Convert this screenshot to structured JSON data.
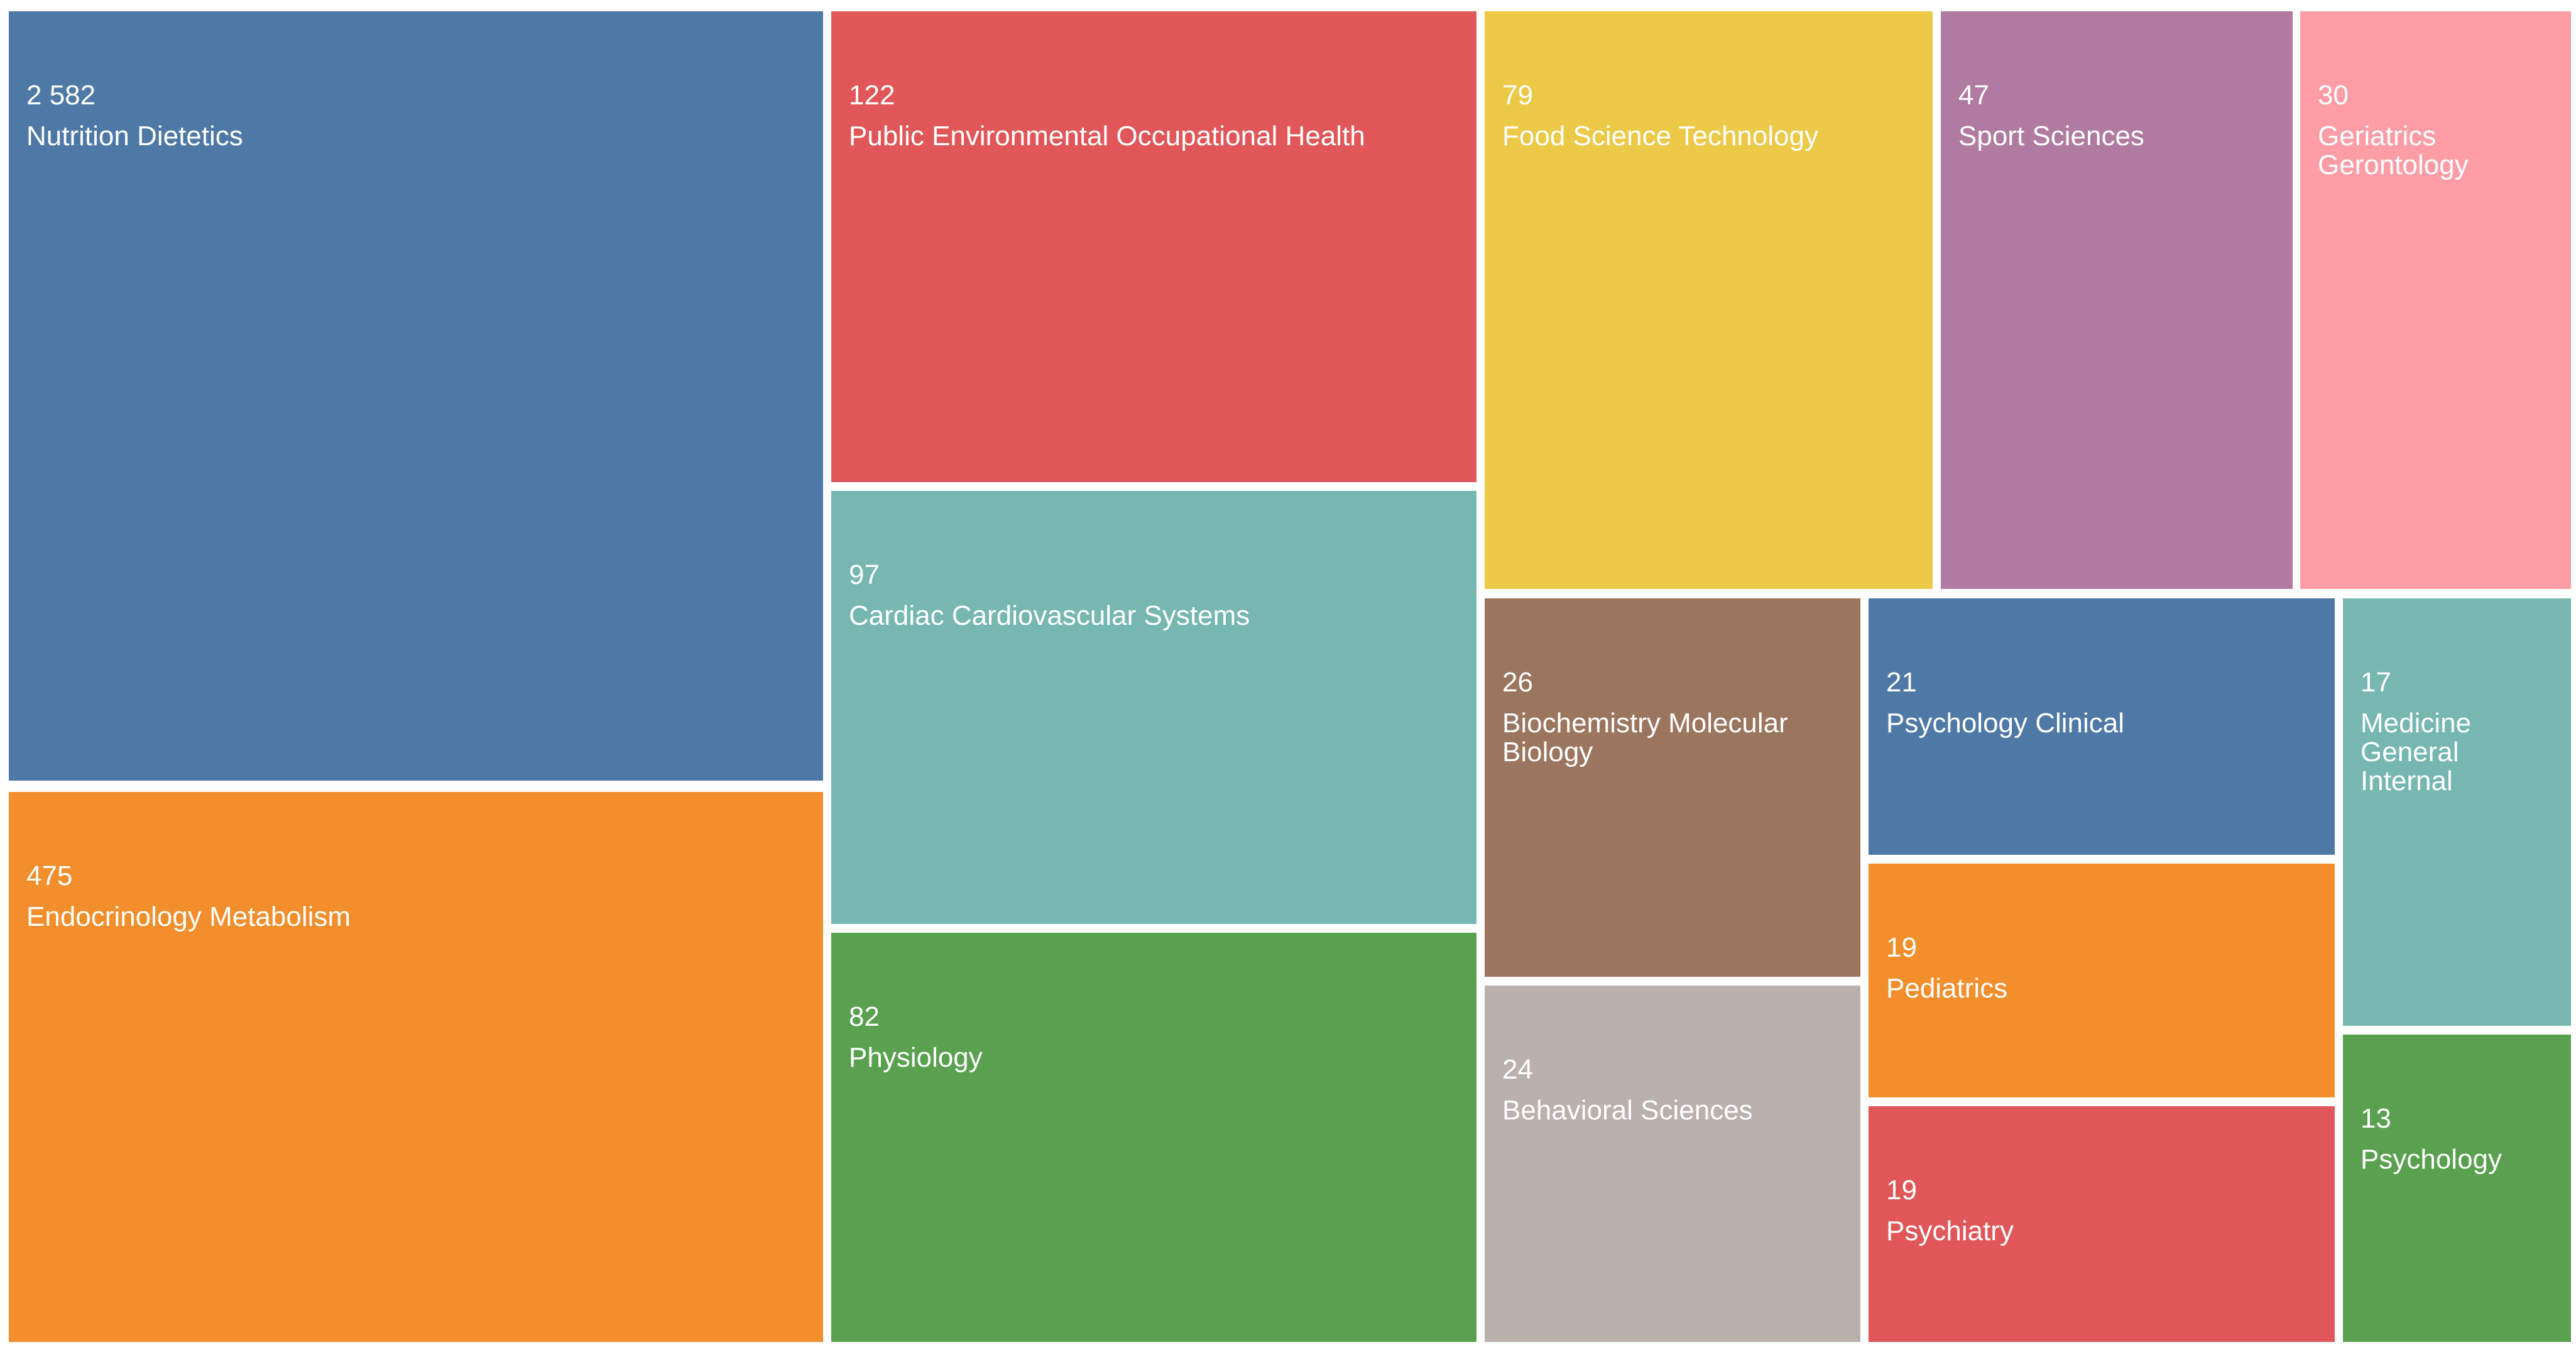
{
  "chart_data": {
    "type": "treemap",
    "items": [
      {
        "label": "Nutrition Dietetics",
        "value": 2582,
        "value_text": "2 582",
        "color": "#4E79A7"
      },
      {
        "label": "Endocrinology Metabolism",
        "value": 475,
        "value_text": "475",
        "color": "#F28E2B"
      },
      {
        "label": "Public Environmental Occupational Health",
        "value": 122,
        "value_text": "122",
        "color": "#E15759"
      },
      {
        "label": "Cardiac Cardiovascular Systems",
        "value": 97,
        "value_text": "97",
        "color": "#76B7B2"
      },
      {
        "label": "Physiology",
        "value": 82,
        "value_text": "82",
        "color": "#59A14F"
      },
      {
        "label": "Food Science Technology",
        "value": 79,
        "value_text": "79",
        "color": "#EDC948"
      },
      {
        "label": "Sport Sciences",
        "value": 47,
        "value_text": "47",
        "color": "#B07AA1"
      },
      {
        "label": "Geriatrics Gerontology",
        "value": 30,
        "value_text": "30",
        "color": "#FF9DA7"
      },
      {
        "label": "Biochemistry Molecular Biology",
        "value": 26,
        "value_text": "26",
        "color": "#9C755F"
      },
      {
        "label": "Psychology Clinical",
        "value": 21,
        "value_text": "21",
        "color": "#4E79A7"
      },
      {
        "label": "Medicine General Internal",
        "value": 17,
        "value_text": "17",
        "color": "#76B7B2"
      },
      {
        "label": "Behavioral Sciences",
        "value": 24,
        "value_text": "24",
        "color": "#BAB0AC"
      },
      {
        "label": "Pediatrics",
        "value": 19,
        "value_text": "19",
        "color": "#F28E2B"
      },
      {
        "label": "Psychiatry",
        "value": 19,
        "value_text": "19",
        "color": "#E15759"
      },
      {
        "label": "Psychology",
        "value": 13,
        "value_text": "13",
        "color": "#59A14F"
      }
    ]
  }
}
